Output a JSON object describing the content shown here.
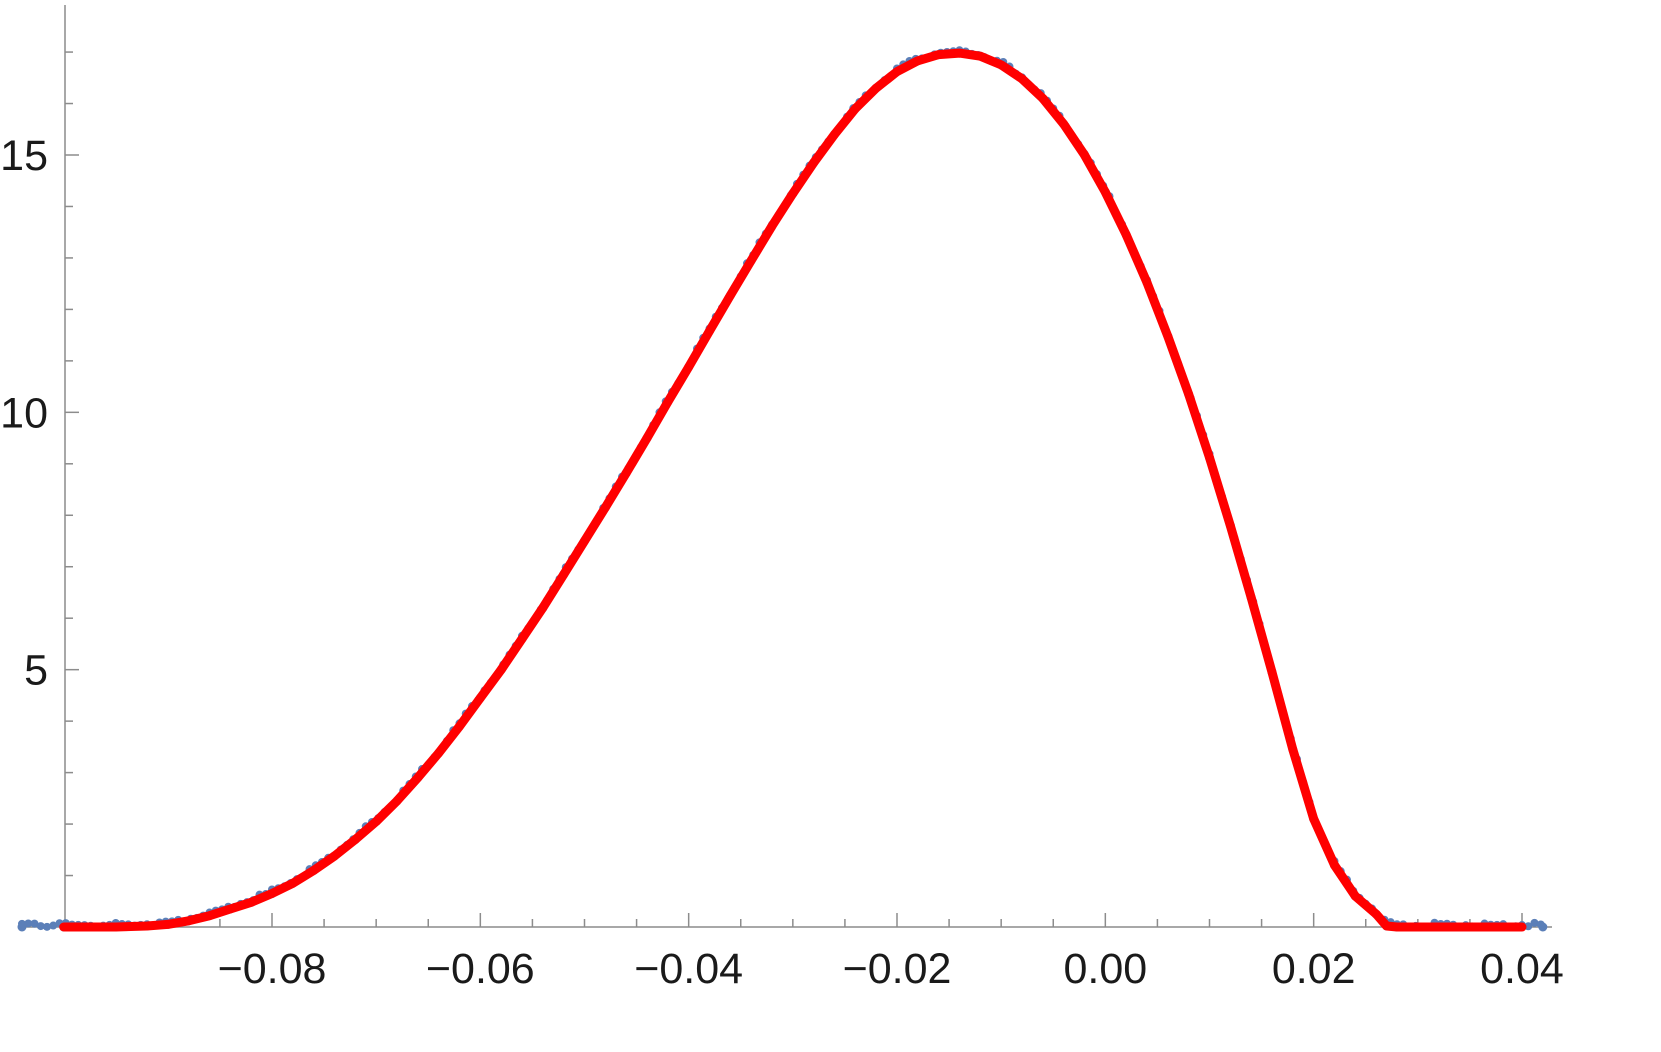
{
  "chart_data": {
    "type": "scatter",
    "title": "",
    "xlabel": "",
    "ylabel": "",
    "xlim": [
      -0.1,
      0.042
    ],
    "ylim": [
      0,
      17.5
    ],
    "grid": false,
    "x_ticks": [
      -0.08,
      -0.06,
      -0.04,
      -0.02,
      0.0,
      0.02,
      0.04
    ],
    "x_tick_labels": [
      "−0.08",
      "−0.06",
      "−0.04",
      "−0.02",
      "0.00",
      "0.02",
      "0.04"
    ],
    "x_minor_step": 0.005,
    "y_ticks": [
      5,
      10,
      15
    ],
    "y_tick_labels": [
      "5",
      "10",
      "15"
    ],
    "y_minor_step": 1,
    "series": [
      {
        "kind": "points",
        "color": "#5b7fb8",
        "x": [
          -0.104,
          -0.1,
          -0.095,
          -0.092,
          -0.09,
          -0.088,
          -0.086,
          -0.084,
          -0.082,
          -0.08,
          -0.078,
          -0.076,
          -0.074,
          -0.072,
          -0.07,
          -0.068,
          -0.066,
          -0.064,
          -0.062,
          -0.06,
          -0.058,
          -0.056,
          -0.054,
          -0.052,
          -0.05,
          -0.048,
          -0.046,
          -0.044,
          -0.042,
          -0.04,
          -0.038,
          -0.036,
          -0.034,
          -0.032,
          -0.03,
          -0.028,
          -0.026,
          -0.024,
          -0.022,
          -0.02,
          -0.018,
          -0.016,
          -0.014,
          -0.012,
          -0.01,
          -0.008,
          -0.006,
          -0.004,
          -0.002,
          0.0,
          0.002,
          0.004,
          0.006,
          0.008,
          0.01,
          0.012,
          0.014,
          0.016,
          0.018,
          0.02,
          0.022,
          0.024,
          0.026,
          0.027,
          0.028,
          0.029,
          0.03,
          0.032,
          0.035,
          0.038,
          0.042
        ],
        "y": [
          0,
          0,
          0,
          0.02,
          0.05,
          0.12,
          0.22,
          0.35,
          0.48,
          0.65,
          0.85,
          1.1,
          1.38,
          1.7,
          2.05,
          2.45,
          2.9,
          3.38,
          3.9,
          4.45,
          5.0,
          5.6,
          6.2,
          6.85,
          7.5,
          8.15,
          8.82,
          9.5,
          10.2,
          10.88,
          11.58,
          12.27,
          12.95,
          13.62,
          14.25,
          14.85,
          15.4,
          15.9,
          16.3,
          16.62,
          16.83,
          16.95,
          16.98,
          16.92,
          16.75,
          16.48,
          16.1,
          15.6,
          15.0,
          14.28,
          13.45,
          12.52,
          11.48,
          10.35,
          9.12,
          7.8,
          6.4,
          4.95,
          3.45,
          2.1,
          1.2,
          0.6,
          0.25,
          0.02,
          0,
          0,
          0,
          0,
          0,
          0,
          0
        ]
      },
      {
        "kind": "line",
        "color": "#ff0000",
        "x": [
          -0.1,
          -0.095,
          -0.092,
          -0.09,
          -0.088,
          -0.086,
          -0.084,
          -0.082,
          -0.08,
          -0.078,
          -0.076,
          -0.074,
          -0.072,
          -0.07,
          -0.068,
          -0.066,
          -0.064,
          -0.062,
          -0.06,
          -0.058,
          -0.056,
          -0.054,
          -0.052,
          -0.05,
          -0.048,
          -0.046,
          -0.044,
          -0.042,
          -0.04,
          -0.038,
          -0.036,
          -0.034,
          -0.032,
          -0.03,
          -0.028,
          -0.026,
          -0.024,
          -0.022,
          -0.02,
          -0.018,
          -0.016,
          -0.014,
          -0.012,
          -0.01,
          -0.008,
          -0.006,
          -0.004,
          -0.002,
          0.0,
          0.002,
          0.004,
          0.006,
          0.008,
          0.01,
          0.012,
          0.014,
          0.016,
          0.018,
          0.02,
          0.022,
          0.024,
          0.026,
          0.027,
          0.028,
          0.029,
          0.03,
          0.035,
          0.04
        ],
        "y": [
          0,
          0,
          0.02,
          0.05,
          0.12,
          0.22,
          0.35,
          0.48,
          0.65,
          0.85,
          1.1,
          1.38,
          1.7,
          2.05,
          2.45,
          2.9,
          3.38,
          3.9,
          4.45,
          5.0,
          5.6,
          6.2,
          6.85,
          7.5,
          8.15,
          8.82,
          9.5,
          10.2,
          10.88,
          11.58,
          12.27,
          12.95,
          13.62,
          14.25,
          14.85,
          15.4,
          15.9,
          16.3,
          16.62,
          16.83,
          16.95,
          16.98,
          16.92,
          16.75,
          16.48,
          16.1,
          15.6,
          15.0,
          14.28,
          13.45,
          12.52,
          11.48,
          10.35,
          9.12,
          7.8,
          6.4,
          4.95,
          3.45,
          2.1,
          1.2,
          0.6,
          0.25,
          0.02,
          0,
          0,
          0,
          0,
          0
        ]
      }
    ]
  }
}
